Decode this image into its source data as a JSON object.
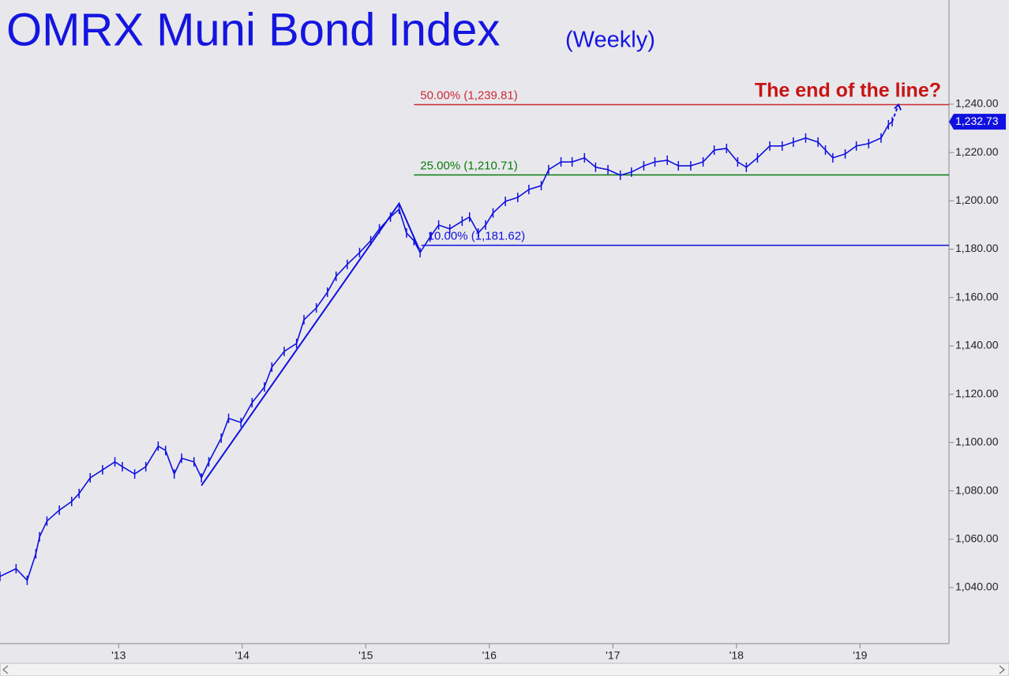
{
  "chart_data": {
    "type": "line",
    "title": "OMRX Muni Bond Index",
    "subtitle": "(Weekly)",
    "annotation": "The end of the line?",
    "x": [
      2012.04,
      2012.17,
      2012.26,
      2012.33,
      2012.36,
      2012.42,
      2012.52,
      2012.62,
      2012.68,
      2012.77,
      2012.87,
      2012.97,
      2013.03,
      2013.13,
      2013.22,
      2013.32,
      2013.38,
      2013.45,
      2013.51,
      2013.61,
      2013.67,
      2013.73,
      2013.83,
      2013.89,
      2013.99,
      2014.08,
      2014.18,
      2014.24,
      2014.34,
      2014.44,
      2014.5,
      2014.6,
      2014.69,
      2014.76,
      2014.85,
      2014.95,
      2015.04,
      2015.11,
      2015.2,
      2015.27,
      2015.33,
      2015.39,
      2015.44,
      2015.52,
      2015.59,
      2015.68,
      2015.78,
      2015.84,
      2015.91,
      2015.97,
      2016.03,
      2016.13,
      2016.23,
      2016.32,
      2016.42,
      2016.48,
      2016.58,
      2016.67,
      2016.77,
      2016.86,
      2016.96,
      2017.06,
      2017.15,
      2017.25,
      2017.34,
      2017.44,
      2017.53,
      2017.63,
      2017.73,
      2017.82,
      2017.92,
      2018.01,
      2018.08,
      2018.17,
      2018.27,
      2018.37,
      2018.46,
      2018.56,
      2018.66,
      2018.72,
      2018.78,
      2018.88,
      2018.97,
      2019.07,
      2019.17,
      2019.23,
      2019.26
    ],
    "series": [
      {
        "name": "OMRX Muni Bond Index",
        "color": "#1010e0",
        "values": [
          1044.6,
          1047.8,
          1043,
          1054,
          1061,
          1067.5,
          1072,
          1075.6,
          1078.9,
          1085.4,
          1088.7,
          1092,
          1090,
          1087,
          1090,
          1098.5,
          1096.7,
          1087,
          1093.5,
          1092,
          1085.4,
          1092,
          1101.8,
          1110,
          1108.3,
          1116.5,
          1123,
          1131.2,
          1137.7,
          1141,
          1150.8,
          1155.7,
          1162.2,
          1168.8,
          1173.7,
          1178.6,
          1183.5,
          1188.4,
          1193.3,
          1196.5,
          1186.7,
          1183.5,
          1178.6,
          1185,
          1190,
          1188.4,
          1191.6,
          1193.3,
          1186.7,
          1190,
          1195,
          1199.8,
          1201.4,
          1204.7,
          1206.3,
          1212.9,
          1216.1,
          1216.1,
          1217.8,
          1213.9,
          1212.9,
          1210.6,
          1211.9,
          1214.5,
          1216.1,
          1216.8,
          1214.5,
          1214.5,
          1216.1,
          1221,
          1221.7,
          1216.1,
          1213.9,
          1217.8,
          1222.7,
          1222.7,
          1224.3,
          1226,
          1224.3,
          1221,
          1217.8,
          1219.4,
          1222.7,
          1223.7,
          1226,
          1231.5,
          1232.73
        ]
      }
    ],
    "last": {
      "value": 1232.73,
      "label": "1,232.73"
    },
    "levels": [
      {
        "value": 1239.81,
        "label": "50.00% (1,239.81)",
        "color": "#cc2a36",
        "start": 2015.39
      },
      {
        "value": 1210.71,
        "label": "25.00% (1,210.71)",
        "color": "#0a7a0a",
        "start": 2015.39
      },
      {
        "value": 1181.62,
        "label": "10.00% (1,181.62)",
        "color": "#1010e0",
        "start": 2015.45
      }
    ],
    "trendline": {
      "x": [
        2013.67,
        2015.27,
        2015.43
      ],
      "values": [
        1082.2,
        1198.9,
        1180.2
      ]
    },
    "xlim": [
      2012.04,
      2019.72
    ],
    "xticks": [
      {
        "value": 2013,
        "label": "'13"
      },
      {
        "value": 2014,
        "label": "'14"
      },
      {
        "value": 2015,
        "label": "'15"
      },
      {
        "value": 2016,
        "label": "'16"
      },
      {
        "value": 2017,
        "label": "'17"
      },
      {
        "value": 2018,
        "label": "'18"
      },
      {
        "value": 2019,
        "label": "'19"
      }
    ],
    "ylim": [
      1016.8,
      1283.1
    ],
    "yticks": [
      {
        "value": 1040,
        "label": "1,040.00"
      },
      {
        "value": 1060,
        "label": "1,060.00"
      },
      {
        "value": 1080,
        "label": "1,080.00"
      },
      {
        "value": 1100,
        "label": "1,100.00"
      },
      {
        "value": 1120,
        "label": "1,120.00"
      },
      {
        "value": 1140,
        "label": "1,140.00"
      },
      {
        "value": 1160,
        "label": "1,160.00"
      },
      {
        "value": 1180,
        "label": "1,180.00"
      },
      {
        "value": 1200,
        "label": "1,200.00"
      },
      {
        "value": 1220,
        "label": "1,220.00"
      },
      {
        "value": 1240,
        "label": "1,240.00"
      }
    ]
  }
}
